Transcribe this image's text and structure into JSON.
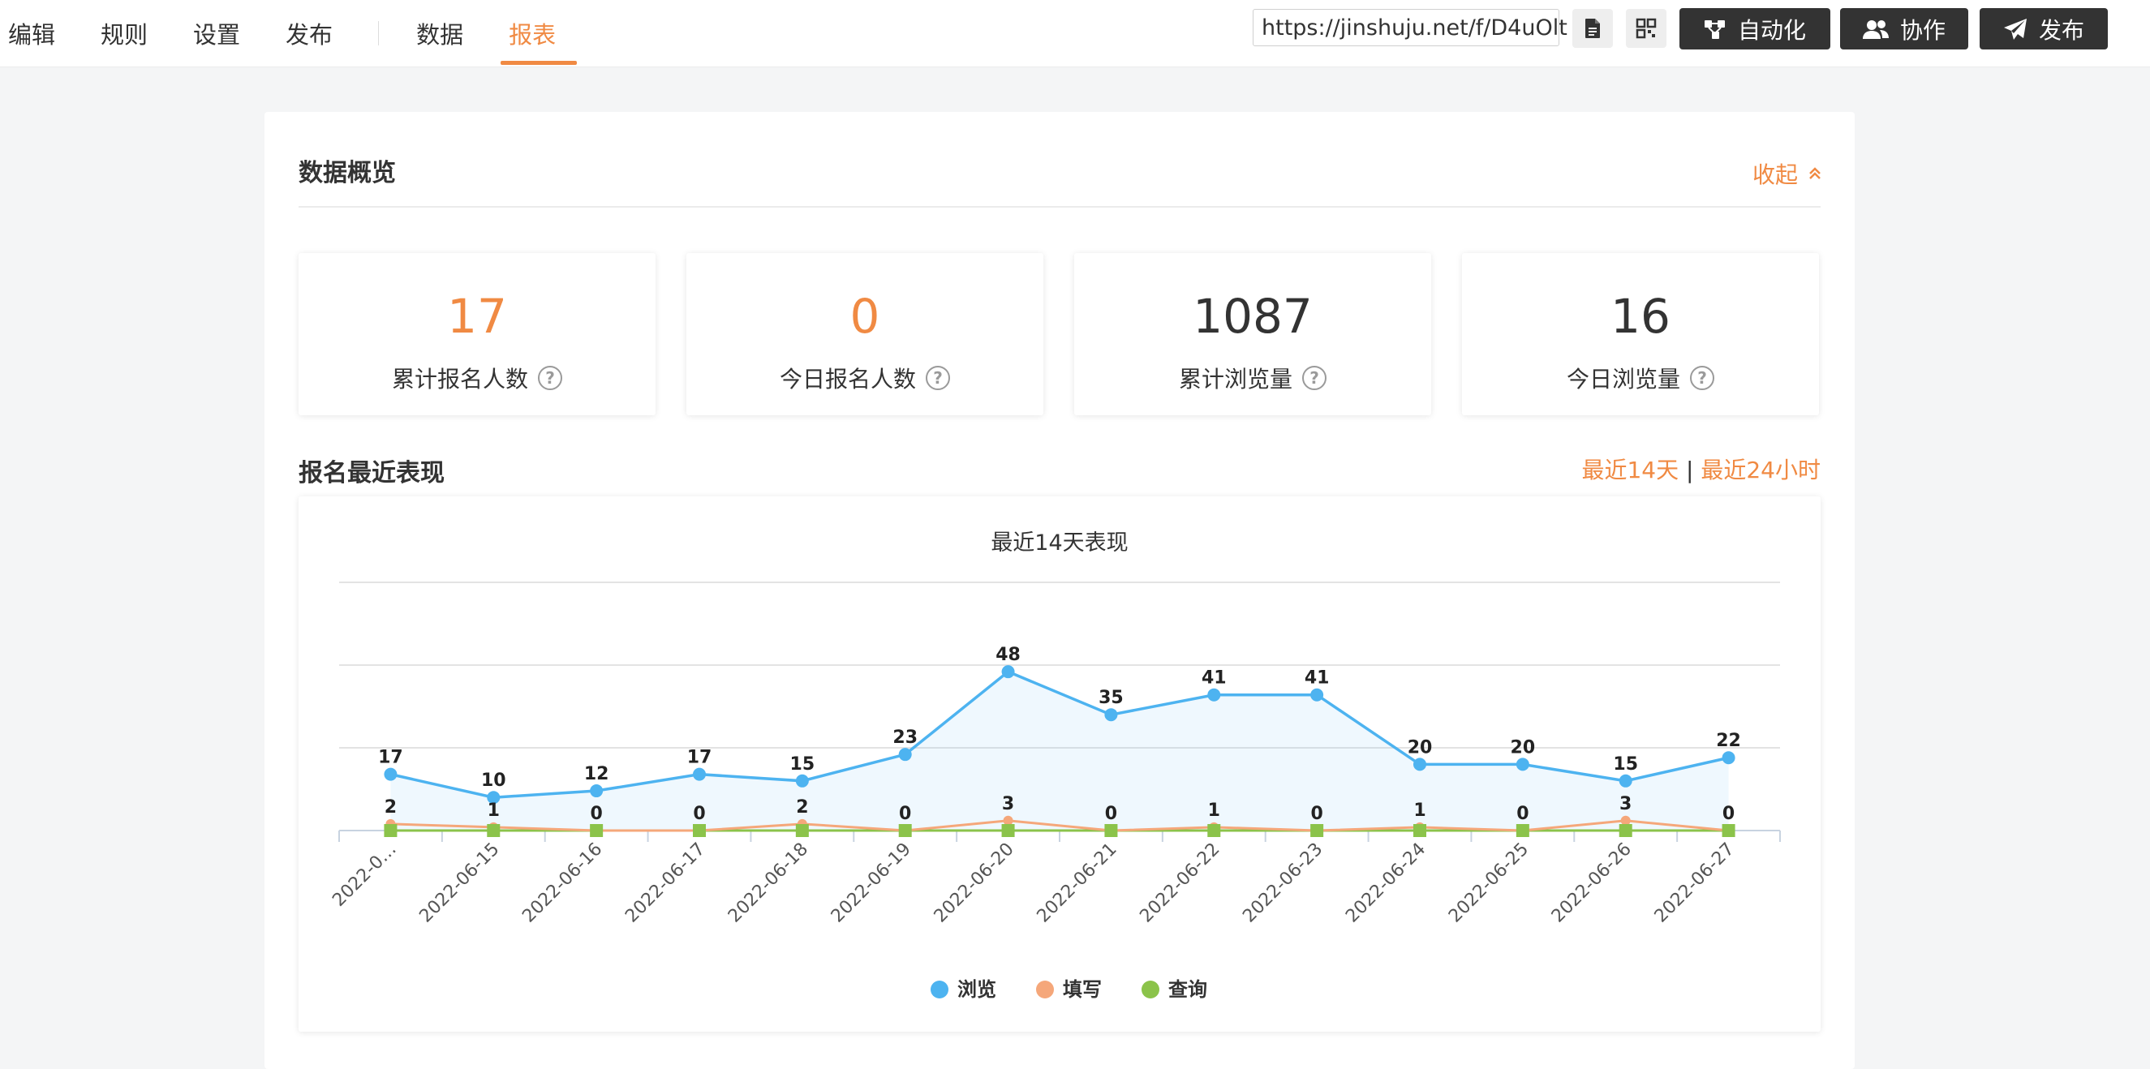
{
  "nav": {
    "tabs": [
      {
        "label": "编辑"
      },
      {
        "label": "规则"
      },
      {
        "label": "设置"
      },
      {
        "label": "发布"
      },
      {
        "label": "数据"
      },
      {
        "label": "报表"
      }
    ],
    "active_tab": "报表"
  },
  "toolbar": {
    "url": "https://jinshuju.net/f/D4uOlt",
    "automation_label": "自动化",
    "collab_label": "协作",
    "publish_label": "发布"
  },
  "overview": {
    "title": "数据概览",
    "collapse_label": "收起",
    "stats": [
      {
        "value": "17",
        "label": "累计报名人数",
        "color": "#f08a43"
      },
      {
        "value": "0",
        "label": "今日报名人数",
        "color": "#f08a43"
      },
      {
        "value": "1087",
        "label": "累计浏览量",
        "color": "#333333"
      },
      {
        "value": "16",
        "label": "今日浏览量",
        "color": "#333333"
      }
    ]
  },
  "recent": {
    "title": "报名最近表现",
    "range_14": "最近14天",
    "range_sep": "|",
    "range_24": "最近24小时"
  },
  "chart_data": {
    "type": "line",
    "title": "最近14天表现",
    "categories": [
      "2022-0…",
      "2022-06-15",
      "2022-06-16",
      "2022-06-17",
      "2022-06-18",
      "2022-06-19",
      "2022-06-20",
      "2022-06-21",
      "2022-06-22",
      "2022-06-23",
      "2022-06-24",
      "2022-06-25",
      "2022-06-26",
      "2022-06-27"
    ],
    "series": [
      {
        "name": "浏览",
        "color": "#4db3f0",
        "values": [
          17,
          10,
          12,
          17,
          15,
          23,
          48,
          35,
          41,
          41,
          20,
          20,
          15,
          22
        ]
      },
      {
        "name": "填写",
        "color": "#f5a77a",
        "values": [
          2,
          1,
          0,
          0,
          2,
          0,
          3,
          0,
          1,
          0,
          1,
          0,
          3,
          0
        ]
      },
      {
        "name": "查询",
        "color": "#8bc34a",
        "values": [
          0,
          0,
          0,
          0,
          0,
          0,
          0,
          0,
          0,
          0,
          0,
          0,
          0,
          0
        ]
      }
    ],
    "ylim": [
      0,
      75
    ],
    "grid": true,
    "legend": "bottom"
  }
}
